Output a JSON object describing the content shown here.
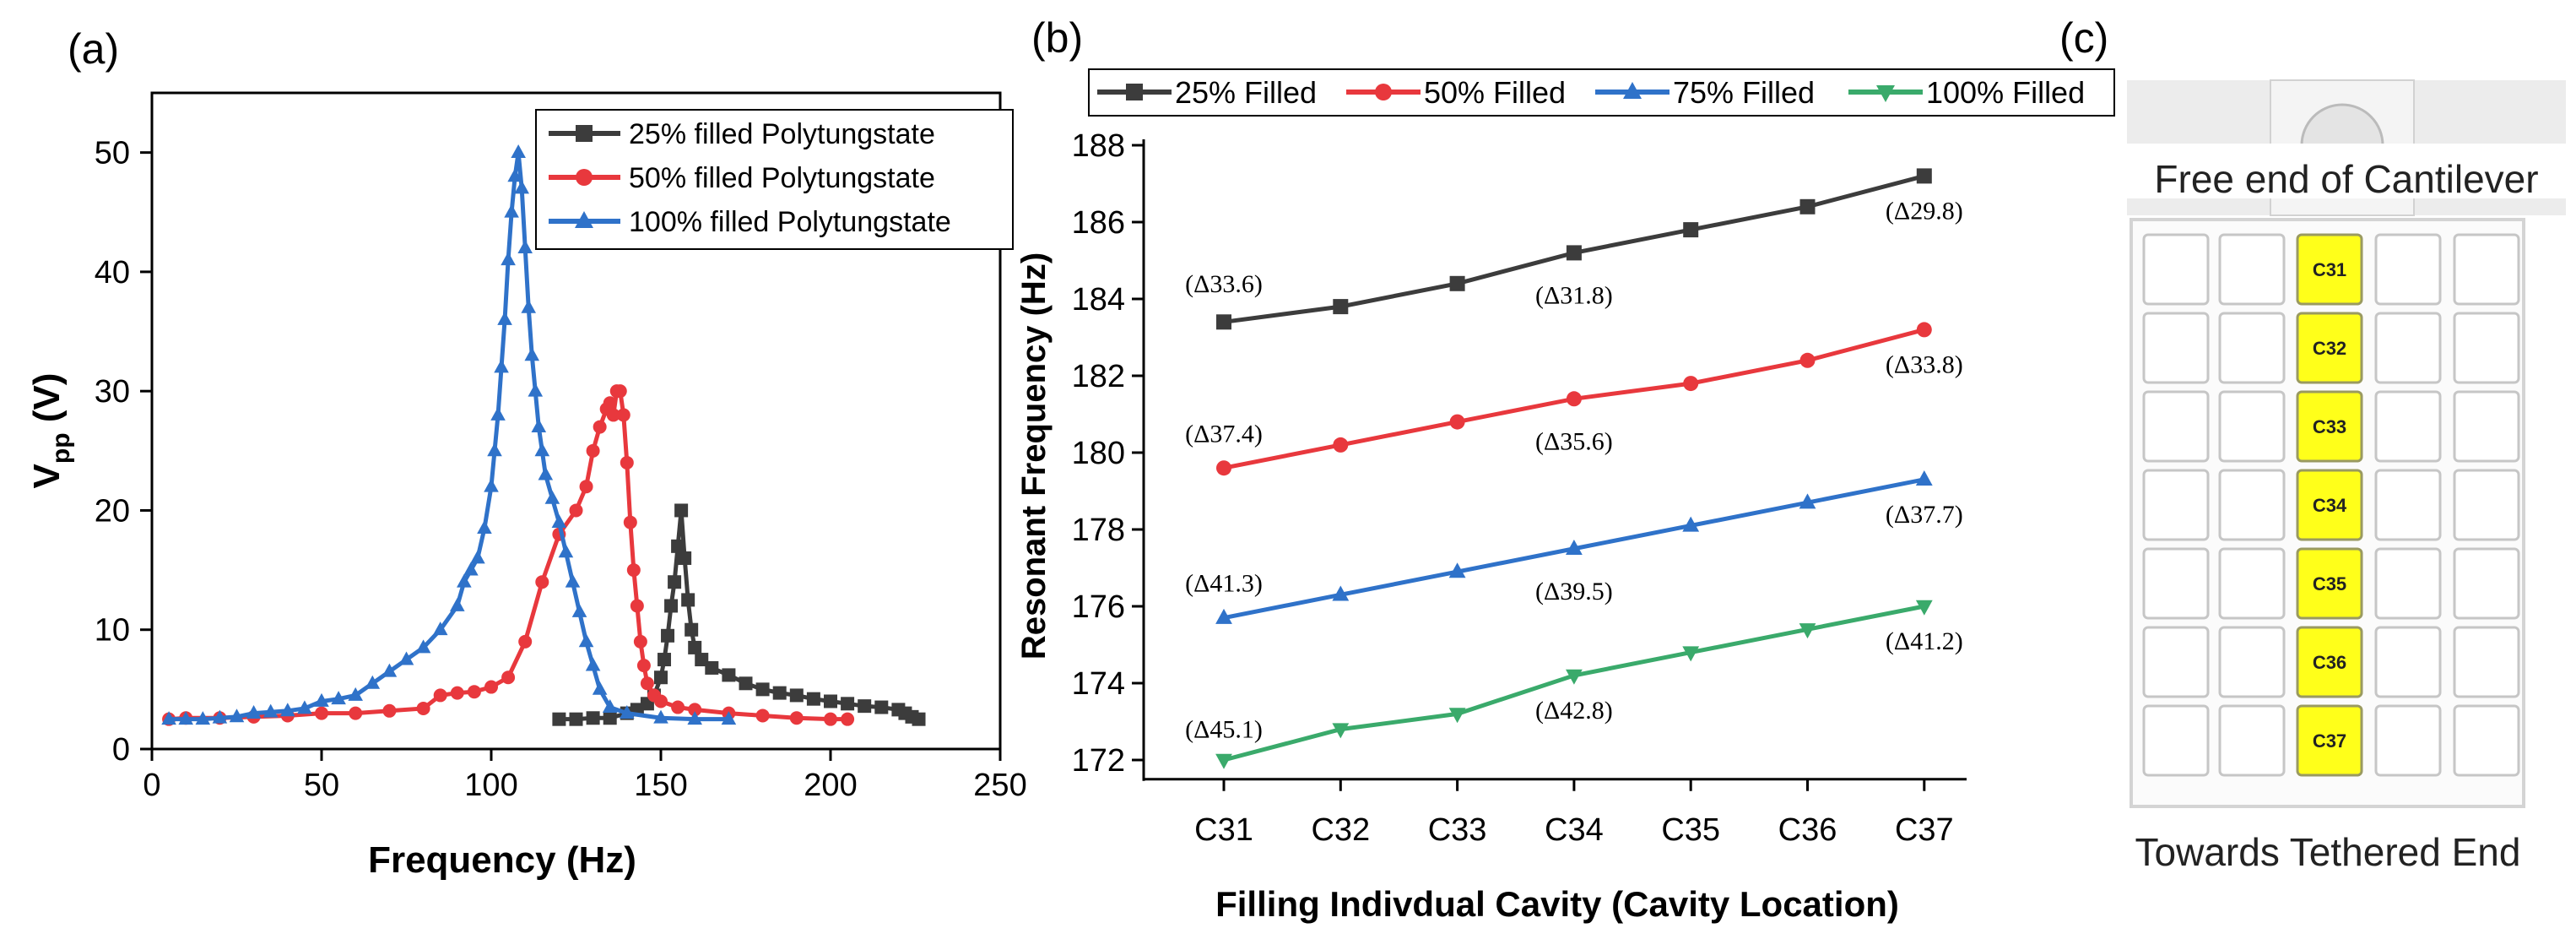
{
  "panels": {
    "a": {
      "label": "(a)",
      "chart_data": {
        "type": "line",
        "title": "",
        "xlabel": "Frequency (Hz)",
        "ylabel_main": "V",
        "ylabel_sub": "pp",
        "ylabel_tail": " (V)",
        "xlim": [
          0,
          250
        ],
        "ylim": [
          0,
          55
        ],
        "xticks": [
          0,
          50,
          100,
          150,
          200,
          250
        ],
        "yticks": [
          0,
          10,
          20,
          30,
          40,
          50
        ],
        "xtick_labels": [
          "0",
          "50",
          "100",
          "150",
          "200",
          "250"
        ],
        "ytick_labels": [
          "0",
          "10",
          "20",
          "30",
          "40",
          "50"
        ],
        "legend": "top-right",
        "series": [
          {
            "name": "25% filled  Polytungstate",
            "color": "#3c3c3c",
            "marker": "square",
            "x": [
              120,
              125,
              130,
              135,
              140,
              143,
              146,
              148,
              150,
              151,
              152,
              153,
              154,
              155,
              156,
              157,
              158,
              159,
              160,
              162,
              165,
              170,
              175,
              180,
              185,
              190,
              195,
              200,
              205,
              210,
              215,
              220,
              222,
              224,
              226
            ],
            "y": [
              2.5,
              2.5,
              2.6,
              2.6,
              3.0,
              3.3,
              3.8,
              4.5,
              6.0,
              7.5,
              9.5,
              12.0,
              14.0,
              17.0,
              20.0,
              16.0,
              12.5,
              10.0,
              8.5,
              7.5,
              6.8,
              6.2,
              5.5,
              5.0,
              4.7,
              4.5,
              4.2,
              4.0,
              3.8,
              3.6,
              3.5,
              3.3,
              3.0,
              2.7,
              2.5
            ]
          },
          {
            "name": "50% filled Polytungstate",
            "color": "#e8383d",
            "marker": "circle",
            "x": [
              5,
              10,
              20,
              30,
              40,
              50,
              60,
              70,
              80,
              85,
              90,
              95,
              100,
              105,
              110,
              115,
              120,
              125,
              128,
              130,
              132,
              134,
              135,
              136,
              137,
              138,
              139,
              140,
              141,
              142,
              143,
              144,
              145,
              146,
              148,
              150,
              155,
              160,
              170,
              180,
              190,
              200,
              205
            ],
            "y": [
              2.5,
              2.6,
              2.6,
              2.7,
              2.8,
              3.0,
              3.0,
              3.2,
              3.4,
              4.5,
              4.7,
              4.8,
              5.2,
              6.0,
              9.0,
              14.0,
              18.0,
              20.0,
              22.0,
              25.0,
              27.0,
              28.5,
              29.0,
              28.0,
              30.0,
              30.0,
              28.0,
              24.0,
              19.0,
              15.0,
              12.0,
              9.0,
              7.0,
              5.5,
              4.5,
              4.0,
              3.5,
              3.3,
              3.0,
              2.8,
              2.6,
              2.5,
              2.5
            ]
          },
          {
            "name": "100% filled Polytungstate",
            "color": "#2f72c9",
            "marker": "triangle",
            "x": [
              5,
              10,
              15,
              20,
              25,
              30,
              35,
              40,
              45,
              50,
              55,
              60,
              65,
              70,
              75,
              80,
              85,
              90,
              92,
              94,
              96,
              98,
              100,
              101,
              102,
              103,
              104,
              105,
              106,
              107,
              108,
              109,
              110,
              111,
              112,
              113,
              114,
              115,
              116,
              118,
              120,
              122,
              124,
              126,
              128,
              130,
              132,
              135,
              140,
              150,
              160,
              170
            ],
            "y": [
              2.5,
              2.5,
              2.5,
              2.6,
              2.7,
              3.0,
              3.1,
              3.2,
              3.4,
              4.0,
              4.2,
              4.5,
              5.5,
              6.5,
              7.5,
              8.5,
              10.0,
              12.0,
              14.0,
              15.0,
              16.0,
              18.5,
              22.0,
              25.0,
              28.0,
              32.0,
              36.0,
              41.0,
              45.0,
              48.0,
              50.0,
              47.0,
              42.0,
              37.0,
              33.0,
              30.0,
              27.0,
              25.0,
              23.0,
              21.0,
              19.0,
              16.5,
              14.0,
              11.5,
              9.0,
              7.0,
              5.0,
              3.5,
              3.0,
              2.6,
              2.5,
              2.5
            ]
          }
        ]
      }
    },
    "b": {
      "label": "(b)",
      "chart_data": {
        "type": "line",
        "title": "",
        "xlabel": "Filling Indivdual Cavity (Cavity Location)",
        "ylabel": "Resonant Frequency (Hz)",
        "categories": [
          "C31",
          "C32",
          "C33",
          "C34",
          "C35",
          "C36",
          "C37"
        ],
        "ylim": [
          171.5,
          188
        ],
        "yticks": [
          172,
          174,
          176,
          178,
          180,
          182,
          184,
          186,
          188
        ],
        "ytick_labels": [
          "172",
          "174",
          "176",
          "178",
          "180",
          "182",
          "184",
          "186",
          "188"
        ],
        "legend": "top",
        "series": [
          {
            "name": "25% Filled",
            "color": "#3c3c3c",
            "marker": "square",
            "values": [
              183.4,
              183.8,
              184.4,
              185.2,
              185.8,
              186.4,
              187.2
            ]
          },
          {
            "name": "50% Filled",
            "color": "#e8383d",
            "marker": "circle",
            "values": [
              179.6,
              180.2,
              180.8,
              181.4,
              181.8,
              182.4,
              183.2
            ]
          },
          {
            "name": "75% Filled",
            "color": "#2f72c9",
            "marker": "triangle",
            "values": [
              175.7,
              176.3,
              176.9,
              177.5,
              178.1,
              178.7,
              179.3
            ]
          },
          {
            "name": "100% Filled",
            "color": "#3aaa6b",
            "marker": "triangle-down",
            "values": [
              172.0,
              172.8,
              173.2,
              174.2,
              174.8,
              175.4,
              176.0
            ]
          }
        ],
        "annotations": [
          {
            "text": "(Δ33.6)",
            "category": "C31",
            "value": 184.4
          },
          {
            "text": "(Δ31.8)",
            "category": "C34",
            "value": 184.1
          },
          {
            "text": "(Δ29.8)",
            "category": "C37",
            "value": 186.3
          },
          {
            "text": "(Δ37.4)",
            "category": "C31",
            "value": 180.5
          },
          {
            "text": "(Δ35.6)",
            "category": "C34",
            "value": 180.3
          },
          {
            "text": "(Δ33.8)",
            "category": "C37",
            "value": 182.3
          },
          {
            "text": "(Δ41.3)",
            "category": "C31",
            "value": 176.6
          },
          {
            "text": "(Δ39.5)",
            "category": "C34",
            "value": 176.4
          },
          {
            "text": "(Δ37.7)",
            "category": "C37",
            "value": 178.4
          },
          {
            "text": "(Δ45.1)",
            "category": "C31",
            "value": 172.8
          },
          {
            "text": "(Δ42.8)",
            "category": "C34",
            "value": 173.3
          },
          {
            "text": "(Δ41.2)",
            "category": "C37",
            "value": 175.1
          }
        ]
      }
    },
    "c": {
      "label": "(c)",
      "top_caption": "Free end of Cantilever",
      "bottom_caption": "Towards Tethered End",
      "cells": [
        "C31",
        "C32",
        "C33",
        "C34",
        "C35",
        "C36",
        "C37"
      ],
      "highlight_color": "#ffff1a"
    }
  }
}
